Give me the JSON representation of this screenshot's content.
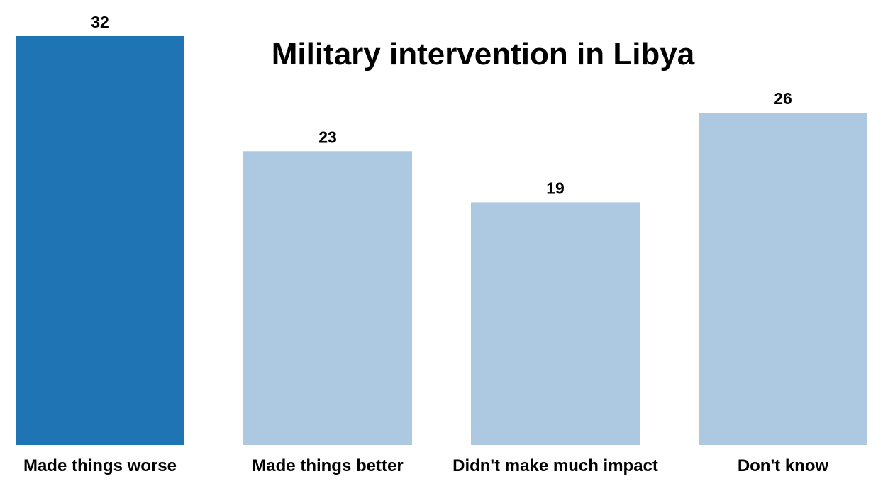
{
  "chart_data": {
    "type": "bar",
    "title": "Military intervention in Libya",
    "categories": [
      "Made things worse",
      "Made things better",
      "Didn't make much impact",
      "Don't know"
    ],
    "values": [
      32,
      23,
      19,
      26
    ],
    "xlabel": "",
    "ylabel": "",
    "ylim": [
      0,
      32
    ],
    "grid": false,
    "legend": "none",
    "colors": [
      "#1f74b3",
      "#adc9e1",
      "#adc9e1",
      "#adc9e1"
    ]
  }
}
